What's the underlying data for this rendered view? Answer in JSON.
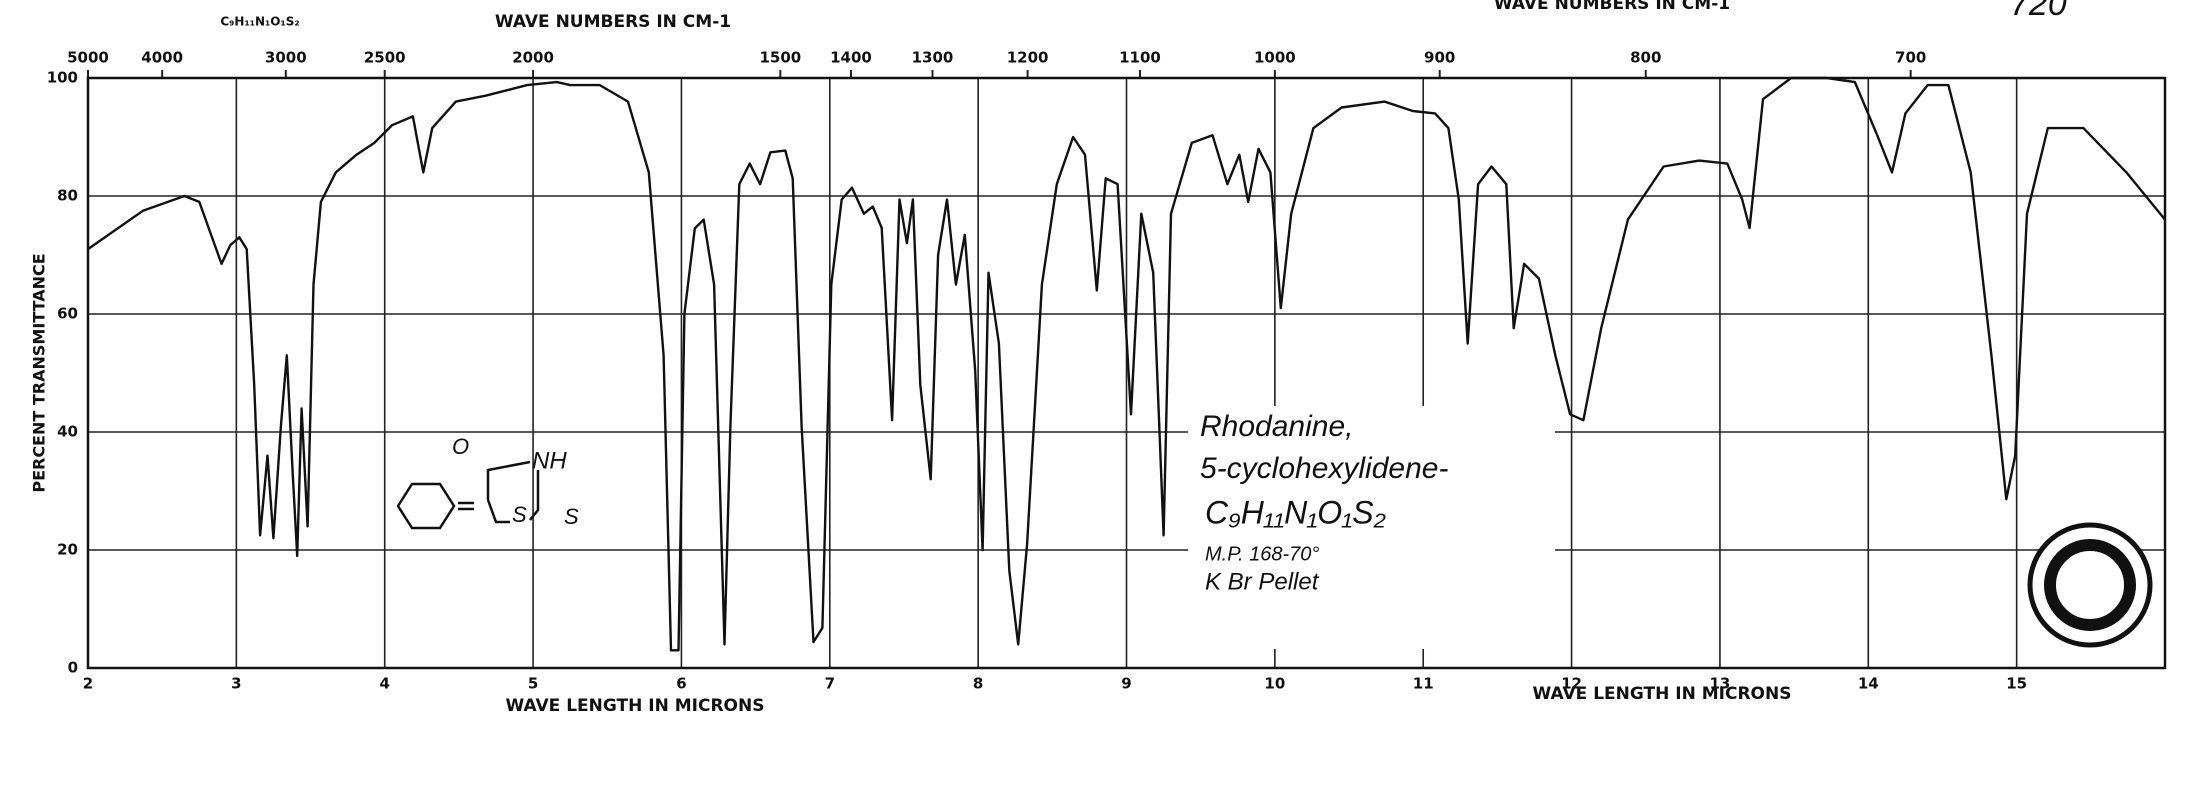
{
  "chart_data": {
    "type": "line",
    "title_top": "WAVE NUMBERS IN CM-1",
    "formula_top": "C₉H₁₁N₁O₁S₂",
    "handwritten_number": "720",
    "xlabel": "WAVE LENGTH IN MICRONS",
    "ylabel": "PERCENT TRANSMITTANCE",
    "annotations": [
      "Rhodanine,",
      "5-cyclohexylidene-",
      "C₉H₁₁N₁O₁S₂",
      "M.P. 168-70°",
      "K Br Pellet"
    ],
    "structure_labels": [
      "O",
      "NH",
      "S",
      "S"
    ],
    "color": "#111111",
    "grid": true,
    "xlim": [
      2,
      16
    ],
    "ylim": [
      0,
      100
    ],
    "xticks": [
      2,
      3,
      4,
      5,
      6,
      7,
      8,
      9,
      10,
      11,
      12,
      13,
      14,
      15
    ],
    "yticks": [
      0,
      20,
      40,
      60,
      80,
      100
    ],
    "x2ticks": [
      5000,
      4000,
      3000,
      2500,
      2000,
      1500,
      1400,
      1300,
      1200,
      1100,
      1000,
      900,
      800,
      700
    ],
    "x": [
      2.0,
      2.37,
      2.65,
      2.75,
      2.9,
      2.96,
      3.02,
      3.07,
      3.12,
      3.16,
      3.21,
      3.25,
      3.3,
      3.34,
      3.38,
      3.41,
      3.44,
      3.48,
      3.52,
      3.57,
      3.67,
      3.81,
      3.93,
      4.05,
      4.19,
      4.26,
      4.32,
      4.48,
      4.68,
      4.96,
      5.16,
      5.25,
      5.45,
      5.64,
      5.78,
      5.88,
      5.93,
      5.98,
      6.02,
      6.09,
      6.15,
      6.22,
      6.29,
      6.33,
      6.39,
      6.46,
      6.53,
      6.6,
      6.7,
      6.75,
      6.81,
      6.89,
      6.95,
      7.01,
      7.08,
      7.15,
      7.23,
      7.29,
      7.35,
      7.42,
      7.47,
      7.52,
      7.56,
      7.61,
      7.68,
      7.73,
      7.79,
      7.85,
      7.91,
      7.98,
      8.03,
      8.07,
      8.14,
      8.21,
      8.27,
      8.33,
      8.43,
      8.53,
      8.64,
      8.72,
      8.8,
      8.86,
      8.94,
      9.03,
      9.1,
      9.18,
      9.25,
      9.3,
      9.44,
      9.58,
      9.68,
      9.76,
      9.82,
      9.89,
      9.97,
      10.04,
      10.11,
      10.26,
      10.45,
      10.74,
      10.93,
      11.08,
      11.17,
      11.24,
      11.3,
      11.37,
      11.46,
      11.56,
      11.61,
      11.68,
      11.78,
      11.89,
      11.99,
      12.08,
      12.2,
      12.38,
      12.62,
      12.86,
      13.05,
      13.15,
      13.2,
      13.29,
      13.48,
      13.72,
      13.91,
      14.06,
      14.16,
      14.25,
      14.4,
      14.54,
      14.69,
      14.83,
      14.93,
      14.99,
      15.07,
      15.21,
      15.45,
      15.74,
      16.0
    ],
    "values": [
      71,
      77.5,
      80,
      79,
      68.5,
      71.7,
      73,
      71,
      48,
      22.5,
      36,
      22,
      41,
      53,
      33,
      19,
      44,
      24,
      65,
      79,
      84,
      87,
      89,
      92,
      93.5,
      84,
      91.5,
      96,
      97,
      98.8,
      99.3,
      98.8,
      98.8,
      96,
      84,
      53,
      3,
      3,
      60,
      74.5,
      76,
      65,
      4,
      41,
      82,
      85.5,
      82,
      87.4,
      87.7,
      83,
      41,
      4.4,
      6.8,
      65,
      79.4,
      81.4,
      77,
      78.2,
      74.6,
      42,
      79.4,
      72,
      79.4,
      48,
      32,
      70,
      79.4,
      65,
      73.4,
      50.4,
      20,
      67,
      55,
      16.5,
      4,
      21,
      65,
      82,
      90,
      87,
      64,
      83,
      82,
      43,
      77,
      67,
      22.5,
      77,
      89,
      90.3,
      82,
      87,
      79,
      88,
      84,
      61,
      77,
      91.5,
      95,
      96,
      94.4,
      94,
      91.5,
      79.4,
      55,
      82,
      85,
      82,
      57.6,
      68.5,
      66,
      53,
      43,
      42,
      57.6,
      76,
      85,
      86,
      85.5,
      79.4,
      74.6,
      96.4,
      100,
      100,
      99.3,
      90.3,
      84,
      94,
      98.8,
      98.8,
      84,
      53,
      28.6,
      36,
      77,
      91.5,
      91.5,
      84,
      76
    ]
  }
}
